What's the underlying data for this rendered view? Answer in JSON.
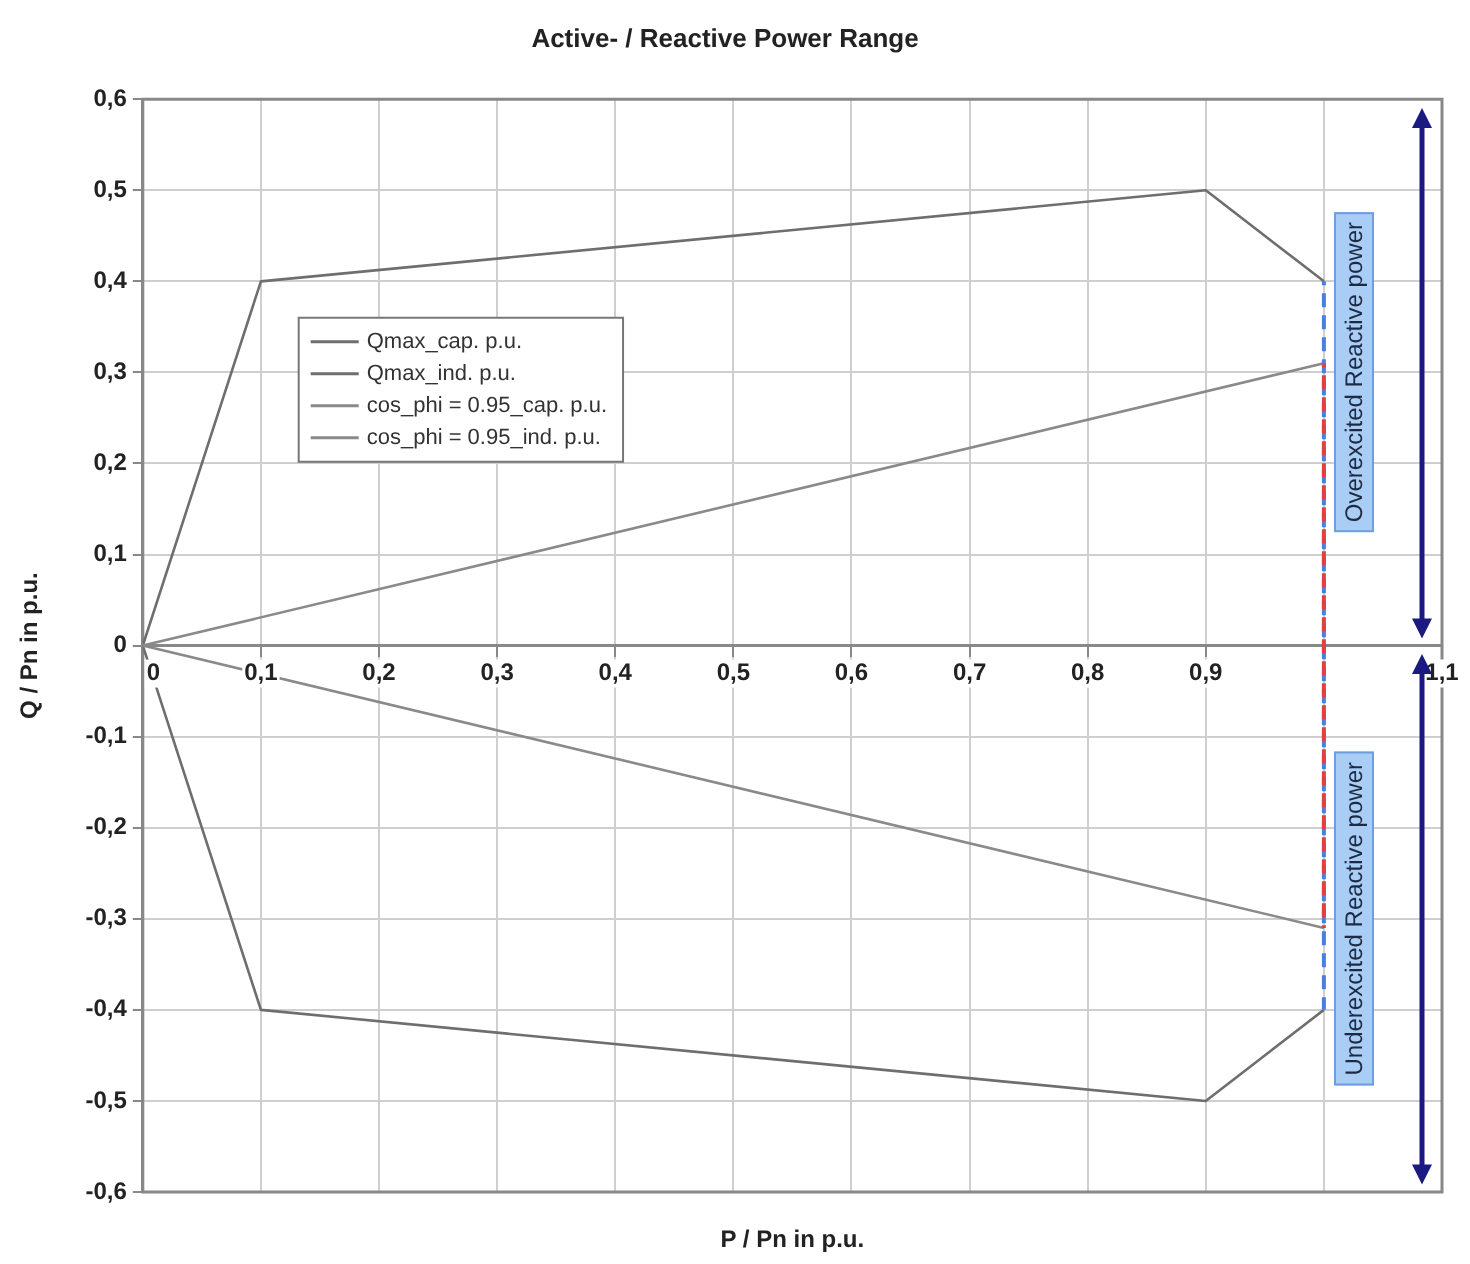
{
  "chart_data": {
    "type": "line",
    "title": "Active- / Reactive Power Range",
    "xlabel": "P / Pn in p.u.",
    "ylabel": "Q / Pn in p.u.",
    "xlim": [
      0,
      1.1
    ],
    "xticks": [
      0,
      {
        "value": 0.1,
        "label": "0,1"
      },
      {
        "value": 0.2,
        "label": "0,2"
      },
      {
        "value": 0.3,
        "label": "0,3"
      },
      {
        "value": 0.4,
        "label": "0,4"
      },
      {
        "value": 0.5,
        "label": "0,5"
      },
      {
        "value": 0.6,
        "label": "0,6"
      },
      {
        "value": 0.7,
        "label": "0,7"
      },
      {
        "value": 0.8,
        "label": "0,8"
      },
      {
        "value": 0.9,
        "label": "0,9"
      },
      {
        "value": 1,
        "label": null
      },
      {
        "value": 1.1,
        "label": "1,1"
      }
    ],
    "ylim": [
      -0.6,
      0.6
    ],
    "yticks": [
      {
        "value": -0.6,
        "label": "-0,6"
      },
      {
        "value": -0.5,
        "label": "-0,5"
      },
      {
        "value": -0.4,
        "label": "-0,4"
      },
      {
        "value": -0.3,
        "label": "-0,3"
      },
      {
        "value": -0.2,
        "label": "-0,2"
      },
      {
        "value": -0.1,
        "label": "-0,1"
      },
      0,
      {
        "value": 0.1,
        "label": "0,1"
      },
      {
        "value": 0.2,
        "label": "0,2"
      },
      {
        "value": 0.3,
        "label": "0,3"
      },
      {
        "value": 0.4,
        "label": "0,4"
      },
      {
        "value": 0.5,
        "label": "0,5"
      },
      {
        "value": 0.6,
        "label": "0,6"
      }
    ],
    "grid": true,
    "legend": "top left",
    "marker": "none",
    "series": [
      {
        "name": "Qmax_cap. p.u.",
        "color": "#6e6e6e",
        "x": [
          0,
          0.1,
          0.9,
          1
        ],
        "values": [
          0,
          0.4,
          0.5,
          0.4
        ]
      },
      {
        "name": "Qmax_ind. p.u.",
        "color": "#6e6e6e",
        "x": [
          0,
          0.1,
          0.9,
          1
        ],
        "values": [
          0,
          -0.4,
          -0.5,
          -0.4
        ]
      },
      {
        "name": "cos_phi = 0.95_cap. p.u.",
        "color": "#8a8a8a",
        "x": [
          0,
          1
        ],
        "values": [
          0,
          0.31
        ]
      },
      {
        "name": "cos_phi = 0.95_ind. p.u.",
        "color": "#8a8a8a",
        "x": [
          0,
          1
        ],
        "values": [
          0,
          -0.31
        ]
      },
      {
        "color": "#4a7fe0",
        "x": [
          1,
          1
        ],
        "values": [
          -0.4,
          0.4
        ],
        "line_style": "dashed"
      },
      {
        "color": "#e04040",
        "x": [
          1,
          1
        ],
        "values": [
          -0.31,
          0.31
        ],
        "line_style": "dashed"
      }
    ],
    "annotations": [
      "Overexcited Reactive power",
      "Underexcited Reactive power"
    ]
  }
}
